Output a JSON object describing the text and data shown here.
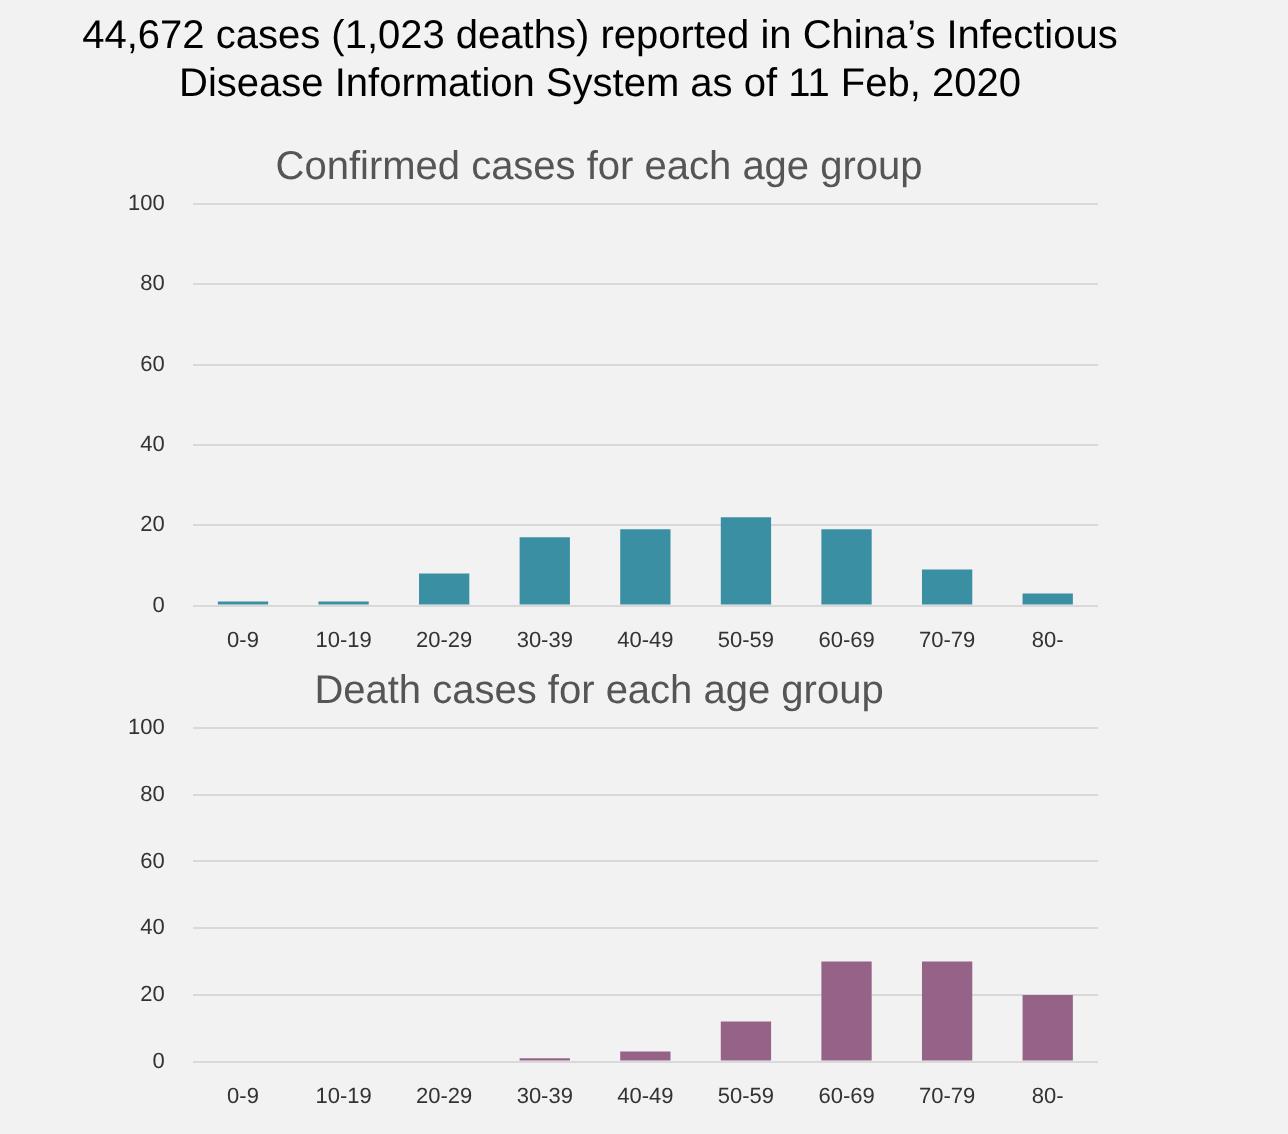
{
  "chart_data": [
    {
      "type": "bar",
      "title": "44,672 cases (1,023 deaths) reported in China’s Infectious Disease Information System as of 11 Feb, 2020",
      "subtitle": "Confirmed cases for each age group",
      "categories": [
        "0-9",
        "10-19",
        "20-29",
        "30-39",
        "40-49",
        "50-59",
        "60-69",
        "70-79",
        "80-"
      ],
      "values": [
        1,
        1,
        8,
        17,
        19,
        22,
        19,
        9,
        3
      ],
      "color": "#3a8fa3",
      "ylim": [
        0,
        100
      ],
      "yticks": [
        0,
        20,
        40,
        60,
        80,
        100
      ],
      "grid": "y",
      "legend": false
    },
    {
      "type": "bar",
      "title": "Death cases for each age group",
      "categories": [
        "0-9",
        "10-19",
        "20-29",
        "30-39",
        "40-49",
        "50-59",
        "60-69",
        "70-79",
        "80-"
      ],
      "values": [
        0,
        0,
        0,
        1,
        3,
        12,
        30,
        30,
        20
      ],
      "color": "#956388",
      "ylim": [
        0,
        100
      ],
      "yticks": [
        0,
        20,
        40,
        60,
        80,
        100
      ],
      "grid": "y",
      "legend": false
    }
  ]
}
